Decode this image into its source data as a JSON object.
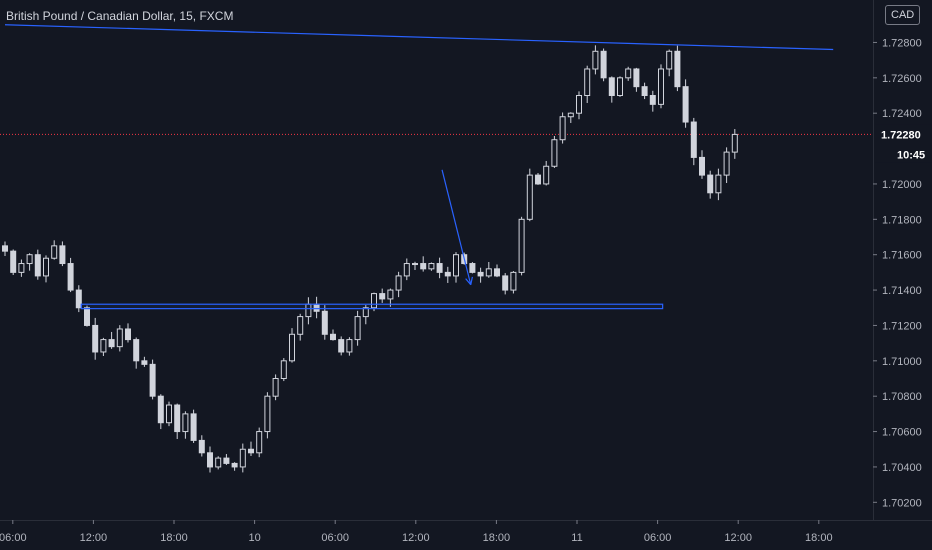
{
  "chart_data": {
    "type": "candlestick",
    "title": "British Pound / Canadian Dollar, 15, FXCM",
    "currency": "CAD",
    "ylim": [
      1.701,
      1.7304
    ],
    "y_ticks": [
      "1.72800",
      "1.72600",
      "1.72400",
      "1.72000",
      "1.71800",
      "1.71600",
      "1.71400",
      "1.71200",
      "1.71000",
      "1.70800",
      "1.70600",
      "1.70400",
      "1.70200"
    ],
    "x_ticks": [
      "06:00",
      "12:00",
      "18:00",
      "10",
      "06:00",
      "12:00",
      "18:00",
      "11",
      "06:00",
      "12:00",
      "18:00"
    ],
    "last_price": "1.72280",
    "countdown": "10:45",
    "grid": false,
    "series": [
      {
        "values": [
          1.7162,
          1.715,
          1.7155,
          1.716,
          1.7148,
          1.7158,
          1.7165,
          1.7155,
          1.714,
          1.713,
          1.712,
          1.7105,
          1.7112,
          1.7108,
          1.7118,
          1.7112,
          1.71,
          1.7098,
          1.708,
          1.7065,
          1.7075,
          1.706,
          1.707,
          1.7055,
          1.7048,
          1.704,
          1.7045,
          1.7042,
          1.704,
          1.705,
          1.7048,
          1.706,
          1.708,
          1.709,
          1.71,
          1.7115,
          1.7125,
          1.7132,
          1.7128,
          1.7115,
          1.7112,
          1.7105,
          1.7112,
          1.7125,
          1.713,
          1.7138,
          1.7135,
          1.714,
          1.7148,
          1.7155,
          1.7155,
          1.7152,
          1.7155,
          1.715,
          1.7148,
          1.716,
          1.7155,
          1.715,
          1.7148,
          1.7152,
          1.7148,
          1.714,
          1.715,
          1.718,
          1.7205,
          1.72,
          1.721,
          1.7225,
          1.7238,
          1.724,
          1.725,
          1.7265,
          1.7275,
          1.726,
          1.725,
          1.726,
          1.7265,
          1.7255,
          1.725,
          1.7245,
          1.7265,
          1.7275,
          1.7255,
          1.7235,
          1.7215,
          1.7205,
          1.7195,
          1.7205,
          1.7218,
          1.7228
        ]
      }
    ],
    "annotations": {
      "trendline": {
        "from": [
          0,
          1.729
        ],
        "to": [
          101,
          1.7276
        ]
      },
      "support_zone": {
        "from": 9.3,
        "to": 80.2,
        "upper": 1.7132,
        "lower": 1.71295
      },
      "arrow": {
        "from": [
          53.3,
          1.7208
        ],
        "to": [
          56.8,
          1.7143
        ]
      },
      "price_line": 1.7228
    }
  }
}
